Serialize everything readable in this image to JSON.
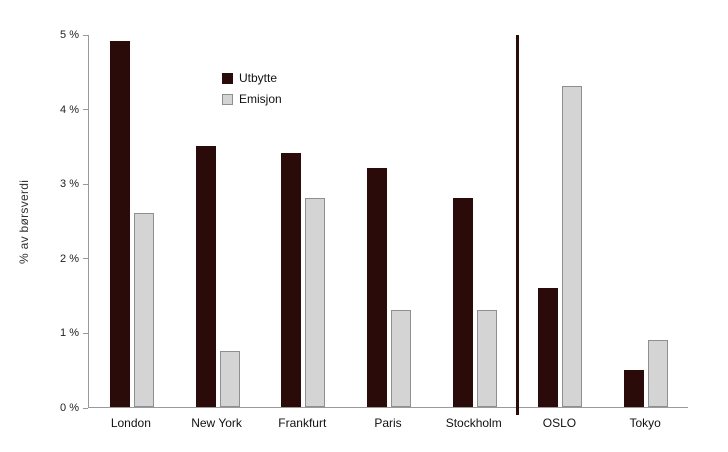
{
  "chart_data": {
    "type": "bar",
    "categories": [
      "London",
      "New York",
      "Frankfurt",
      "Paris",
      "Stockholm",
      "OSLO",
      "Tokyo"
    ],
    "series": [
      {
        "name": "Utbytte",
        "color": "#2b0a0a",
        "values": [
          4.9,
          3.5,
          3.4,
          3.2,
          2.8,
          1.6,
          0.5
        ]
      },
      {
        "name": "Emisjon",
        "color": "#d4d4d4",
        "values": [
          2.6,
          0.75,
          2.8,
          1.3,
          1.3,
          4.3,
          0.9
        ]
      }
    ],
    "title": "",
    "xlabel": "",
    "ylabel": "% av børsverdi",
    "ylim": [
      0,
      5
    ],
    "ytick_labels": [
      "0 %",
      "1 %",
      "2 %",
      "3 %",
      "4 %",
      "5 %"
    ],
    "grid": false,
    "legend_position": "inside-top-left",
    "separator_after_category": "Stockholm",
    "colors": {
      "utbytte_bar": "#2b0a0a",
      "emisjon_bar": "#d4d4d4",
      "emisjon_border": "#8f8f8f",
      "separator_line": "#2b0a0a",
      "axis": "#9a9a9a"
    }
  }
}
